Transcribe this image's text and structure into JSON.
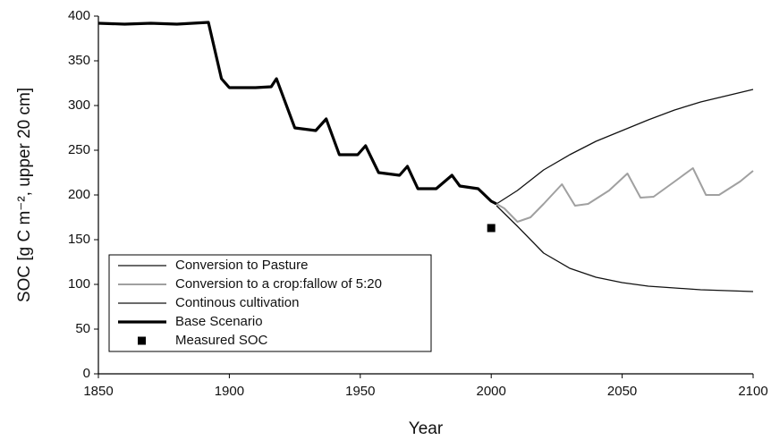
{
  "chart_data": {
    "type": "line",
    "xlabel": "Year",
    "ylabel": "SOC [g C m⁻², upper 20 cm]",
    "xlim": [
      1850,
      2100
    ],
    "xticks": [
      1850,
      1900,
      1950,
      2000,
      2050,
      2100
    ],
    "ylim": [
      0,
      400
    ],
    "yticks": [
      0,
      50,
      100,
      150,
      200,
      250,
      300,
      350,
      400
    ],
    "grid": false,
    "legend": "lower left",
    "series": [
      {
        "name": "Conversion to Pasture",
        "color": "#111111",
        "width": 1.3,
        "mode": "line",
        "x": [
          2002,
          2010,
          2020,
          2030,
          2040,
          2050,
          2060,
          2070,
          2080,
          2090,
          2100
        ],
        "values": [
          190,
          205,
          228,
          245,
          260,
          272,
          284,
          295,
          304,
          311,
          318
        ]
      },
      {
        "name": "Conversion to a crop:fallow of 5:20",
        "color": "#a0a0a0",
        "width": 2,
        "mode": "line",
        "x": [
          2002,
          2005,
          2010,
          2015,
          2020,
          2027,
          2032,
          2037,
          2045,
          2052,
          2057,
          2062,
          2070,
          2077,
          2082,
          2087,
          2095,
          2100
        ],
        "values": [
          190,
          185,
          170,
          175,
          190,
          212,
          188,
          190,
          205,
          224,
          197,
          198,
          215,
          230,
          200,
          200,
          215,
          227
        ]
      },
      {
        "name": "Continous cultivation",
        "color": "#111111",
        "width": 1.3,
        "mode": "line",
        "x": [
          2002,
          2010,
          2020,
          2030,
          2040,
          2050,
          2060,
          2070,
          2080,
          2090,
          2100
        ],
        "values": [
          188,
          165,
          135,
          118,
          108,
          102,
          98,
          96,
          94,
          93,
          92
        ]
      },
      {
        "name": "Base Scenario",
        "color": "#000000",
        "width": 3.2,
        "mode": "line",
        "x": [
          1850,
          1860,
          1870,
          1880,
          1892,
          1897,
          1900,
          1910,
          1916,
          1918,
          1925,
          1933,
          1937,
          1942,
          1949,
          1952,
          1957,
          1965,
          1968,
          1972,
          1979,
          1985,
          1988,
          1995,
          2000,
          2002
        ],
        "values": [
          392,
          391,
          392,
          391,
          393,
          330,
          320,
          320,
          321,
          330,
          275,
          272,
          285,
          245,
          245,
          255,
          225,
          222,
          232,
          207,
          207,
          222,
          210,
          207,
          193,
          190
        ]
      },
      {
        "name": "Measured SOC",
        "color": "#000000",
        "mode": "marker",
        "x": [
          2000
        ],
        "values": [
          163
        ]
      }
    ]
  }
}
